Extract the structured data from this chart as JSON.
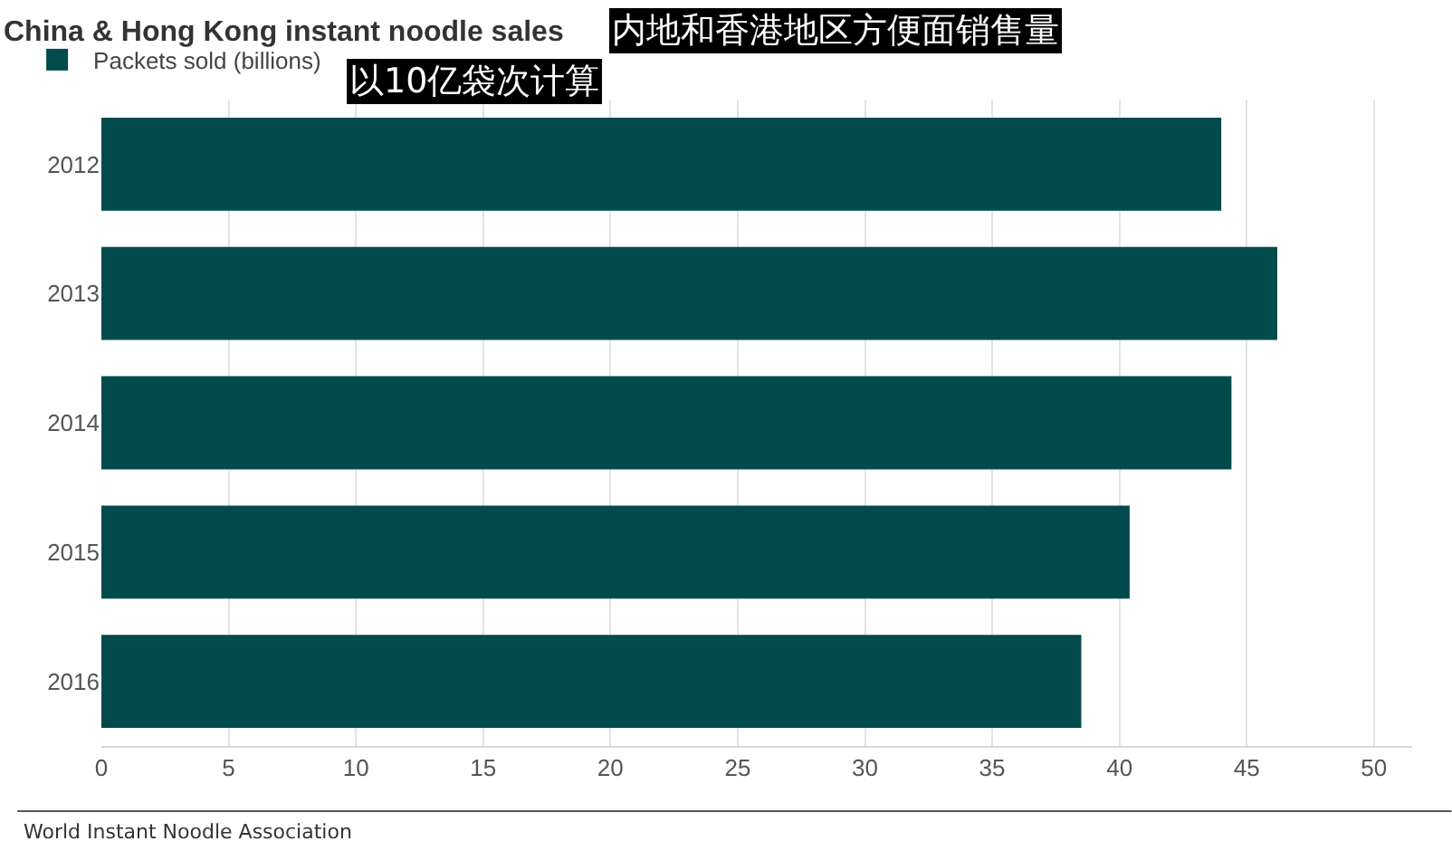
{
  "chart_data": {
    "type": "bar",
    "orientation": "horizontal",
    "title": "China & Hong Kong instant noodle sales",
    "categories": [
      "2012",
      "2013",
      "2014",
      "2015",
      "2016"
    ],
    "series": [
      {
        "name": "Packets sold (billions)",
        "color": "#024b4c",
        "values": [
          44.0,
          46.2,
          44.4,
          40.4,
          38.5
        ]
      }
    ],
    "xlim": [
      0,
      51.5
    ],
    "xticks": [
      0,
      5,
      10,
      15,
      20,
      25,
      30,
      35,
      40,
      45,
      50
    ],
    "grid": "x",
    "legend": "top left",
    "annotations": [
      "内地和香港地区方便面销售量",
      "以10亿袋次计算",
      "World Instant Noodle Association"
    ]
  }
}
